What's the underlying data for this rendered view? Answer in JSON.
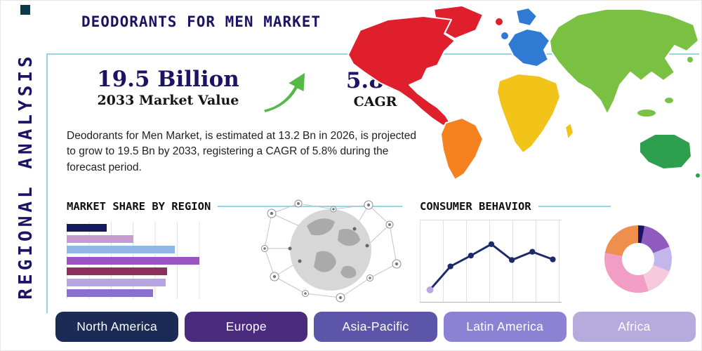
{
  "side_label": "REGIONAL ANALYSIS",
  "title": "DEODORANTS FOR MEN MARKET",
  "stats": {
    "market_value": "19.5 Billion",
    "market_value_label": "2033 Market Value",
    "cagr_value": "5.8%",
    "cagr_label": "CAGR"
  },
  "description": "Deodorants for Men Market, is estimated at 13.2 Bn in 2026, is projected to grow to 19.5 Bn by 2033, registering a CAGR of 5.8% during the forecast period.",
  "colors": {
    "navy": "#1b1464",
    "panel_border": "#92d7e7",
    "arrow_green": "#55b948",
    "heading_text": "#101010"
  },
  "icons": {
    "growth_arrow": "arrow-up-right",
    "globe": "network-globe"
  },
  "chart_data": [
    {
      "id": "market-share-by-region",
      "type": "bar",
      "title": "MARKET SHARE BY REGION",
      "orientation": "horizontal",
      "values_unit": "relative bar length, % of chart width (axis unlabeled)",
      "values": [
        26,
        43,
        70,
        86,
        65,
        64,
        56
      ],
      "bar_colors": [
        "#141a5e",
        "#c79ad2",
        "#8fb8e6",
        "#9a55c2",
        "#8e2f5c",
        "#b7a4e3",
        "#8a6fd1"
      ],
      "grid": "vertical light-gray lines"
    },
    {
      "id": "consumer-behavior",
      "type": "line",
      "title": "CONSUMER BEHAVIOR",
      "values_unit": "relative height, % (axes unlabeled)",
      "x": [
        1,
        2,
        3,
        4,
        5,
        6,
        7
      ],
      "values": [
        8,
        45,
        62,
        80,
        55,
        68,
        56
      ],
      "line_color": "#1b2a6b",
      "marker_color": "#1b2a6b",
      "first_marker_color": "#b9a7e6",
      "grid": "vertical light-gray lines"
    },
    {
      "id": "regional-split-donut",
      "type": "pie",
      "style": "donut",
      "values_unit": "estimated % of ring (slices unlabeled)",
      "slices": [
        {
          "color": "#1b1464",
          "value": 3
        },
        {
          "color": "#8f5bbf",
          "value": 16
        },
        {
          "color": "#c3b6ea",
          "value": 12
        },
        {
          "color": "#f6c9dd",
          "value": 14
        },
        {
          "color": "#f29ec4",
          "value": 33
        },
        {
          "color": "#ef8f4e",
          "value": 22
        }
      ]
    }
  ],
  "map": {
    "north_america": "#e01f2d",
    "greenland": "#e01f2d",
    "south_america": "#f5821f",
    "europe": "#2f7bd4",
    "africa": "#f2c318",
    "asia": "#7ac143",
    "australia": "#2e9e4f"
  },
  "region_tabs": [
    {
      "label": "North America",
      "color": "#1c2b55"
    },
    {
      "label": "Europe",
      "color": "#4a2b7d"
    },
    {
      "label": "Asia-Pacific",
      "color": "#5c55a9"
    },
    {
      "label": "Latin America",
      "color": "#8c82d4"
    },
    {
      "label": "Africa",
      "color": "#b6abdd"
    }
  ]
}
